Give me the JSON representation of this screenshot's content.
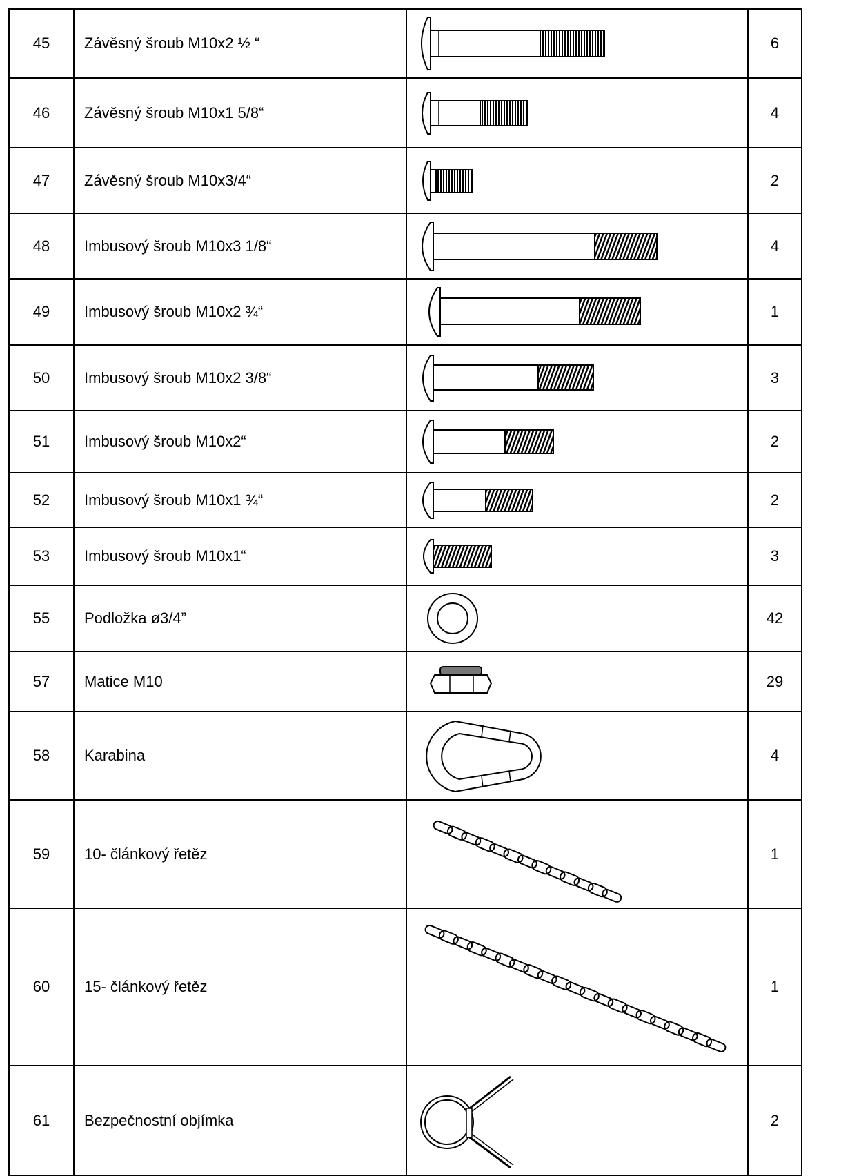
{
  "parts": [
    {
      "no": "45",
      "name": "Závěsný šroub M10x2 ½ “",
      "qty": "6",
      "icon": "carriage-bolt-icon"
    },
    {
      "no": "46",
      "name": "Závěsný šroub M10x1 5/8“",
      "qty": "4",
      "icon": "carriage-bolt-icon"
    },
    {
      "no": "47",
      "name": "Závěsný šroub M10x3/4“",
      "qty": "2",
      "icon": "carriage-bolt-icon"
    },
    {
      "no": "48",
      "name": "Imbusový šroub M10x3 1/8“",
      "qty": "4",
      "icon": "hex-socket-bolt-icon"
    },
    {
      "no": "49",
      "name": "Imbusový šroub M10x2 ¾“",
      "qty": "1",
      "icon": "hex-socket-bolt-icon"
    },
    {
      "no": "50",
      "name": "Imbusový šroub M10x2 3/8“",
      "qty": "3",
      "icon": "hex-socket-bolt-icon"
    },
    {
      "no": "51",
      "name": "Imbusový šroub M10x2“",
      "qty": "2",
      "icon": "hex-socket-bolt-icon"
    },
    {
      "no": "52",
      "name": "Imbusový šroub M10x1 ¾“",
      "qty": "2",
      "icon": "hex-socket-bolt-icon"
    },
    {
      "no": "53",
      "name": "Imbusový šroub M10x1“",
      "qty": "3",
      "icon": "hex-socket-bolt-icon"
    },
    {
      "no": "55",
      "name": "Podložka ø3/4”",
      "qty": "42",
      "icon": "washer-icon"
    },
    {
      "no": "57",
      "name": "Matice M10",
      "qty": "29",
      "icon": "nut-icon"
    },
    {
      "no": "58",
      "name": "Karabina",
      "qty": "4",
      "icon": "carabiner-icon"
    },
    {
      "no": "59",
      "name": "10- článkový řetěz",
      "qty": "1",
      "icon": "chain-icon"
    },
    {
      "no": "60",
      "name": "15- článkový řetěz",
      "qty": "1",
      "icon": "chain-icon"
    },
    {
      "no": "61",
      "name": "Bezpečnostní objímka",
      "qty": "2",
      "icon": "spring-collar-icon"
    }
  ]
}
